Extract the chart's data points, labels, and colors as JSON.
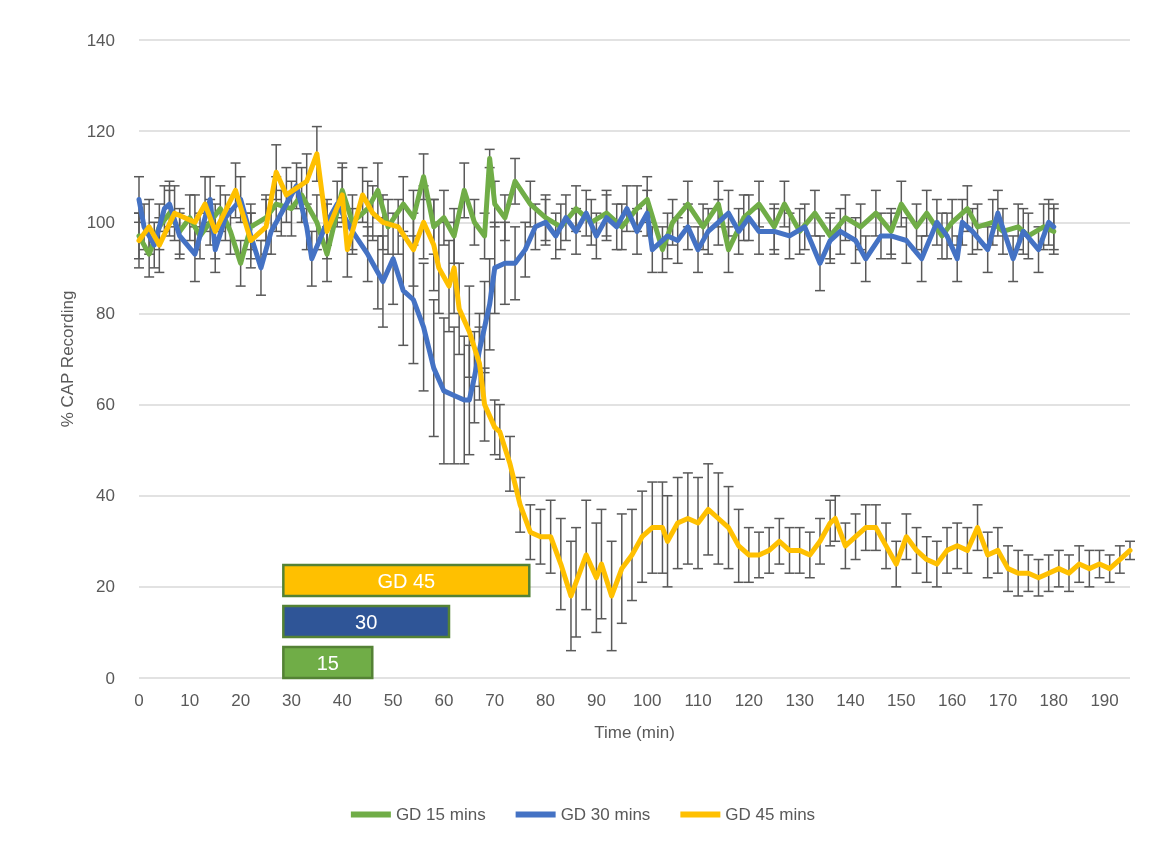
{
  "chart_data": {
    "type": "line",
    "xlabel": "Time (min)",
    "ylabel": "% CAP Recording",
    "xlim": [
      0,
      195
    ],
    "xticks": [
      0,
      10,
      20,
      30,
      40,
      50,
      60,
      70,
      80,
      90,
      100,
      110,
      120,
      130,
      140,
      150,
      160,
      170,
      180,
      190
    ],
    "ylim": [
      0,
      140
    ],
    "yticks": [
      0,
      20,
      40,
      60,
      80,
      100,
      120,
      140
    ],
    "grid": "y",
    "legend": "bottom",
    "marker": "none",
    "line_style": "solid",
    "bands": [
      {
        "axis": "x",
        "from": 28.4,
        "to": 76.8,
        "label": "GD 45",
        "color": "#ffc000"
      },
      {
        "axis": "x",
        "from": 28.4,
        "to": 61.0,
        "label": "30",
        "color": "#2f5597"
      },
      {
        "axis": "x",
        "from": 28.4,
        "to": 45.9,
        "label": "15",
        "color": "#70ad47"
      }
    ],
    "series": [
      {
        "name": "GD 15 mins",
        "color": "#70ad47",
        "x": [
          0,
          2,
          4,
          6,
          8,
          10,
          12,
          14,
          16,
          18,
          20,
          22,
          25,
          27,
          30,
          32,
          35,
          37,
          40,
          42,
          45,
          47,
          49,
          52,
          54,
          56,
          58,
          60,
          62,
          64,
          66,
          68,
          69,
          70,
          72,
          74,
          77,
          80,
          83,
          86,
          89,
          92,
          95,
          98,
          100,
          103,
          105,
          108,
          111,
          114,
          116,
          119,
          122,
          125,
          127,
          130,
          133,
          136,
          139,
          142,
          145,
          148,
          150,
          153,
          155,
          158,
          160,
          163,
          165,
          168,
          170,
          173,
          175,
          178,
          180
        ],
        "values": [
          97,
          93,
          99,
          102,
          98,
          101,
          97,
          100,
          103,
          98,
          91,
          99,
          101,
          104,
          103,
          106,
          100,
          93,
          107,
          100,
          103,
          107,
          99,
          104,
          101,
          110,
          99,
          101,
          97,
          107,
          100,
          97,
          114,
          104,
          101,
          109,
          104,
          101,
          99,
          103,
          100,
          102,
          99,
          103,
          105,
          94,
          100,
          104,
          99,
          104,
          94,
          101,
          104,
          99,
          104,
          98,
          102,
          97,
          101,
          99,
          102,
          98,
          104,
          99,
          102,
          97,
          100,
          103,
          99,
          100,
          98,
          99,
          97,
          99,
          98
        ],
        "errors": [
          5,
          5,
          5,
          5,
          5,
          5,
          5,
          5,
          5,
          5,
          5,
          5,
          5,
          6,
          6,
          6,
          6,
          6,
          6,
          6,
          6,
          6,
          6,
          6,
          6,
          5,
          6,
          6,
          6,
          6,
          5,
          5,
          2,
          5,
          5,
          5,
          5,
          5,
          5,
          5,
          5,
          5,
          5,
          5,
          5,
          5,
          5,
          5,
          5,
          5,
          5,
          5,
          5,
          5,
          5,
          5,
          5,
          5,
          5,
          5,
          5,
          5,
          5,
          5,
          5,
          5,
          5,
          5,
          5,
          5,
          5,
          5,
          5,
          5,
          5
        ]
      },
      {
        "name": "GD 30 mins",
        "color": "#4472c4",
        "x": [
          0,
          1,
          3,
          5,
          6,
          8,
          11,
          14,
          15,
          17,
          20,
          22,
          24,
          26,
          28,
          31,
          33,
          34,
          37,
          39,
          42,
          45,
          47,
          48,
          50,
          52,
          54,
          56,
          58,
          60,
          62,
          64,
          65,
          66,
          67,
          68,
          69,
          70,
          72,
          74,
          76,
          78,
          80,
          82,
          84,
          86,
          88,
          90,
          92,
          94,
          96,
          98,
          100,
          101,
          104,
          106,
          108,
          110,
          112,
          114,
          116,
          118,
          120,
          122,
          125,
          128,
          131,
          134,
          136,
          138,
          141,
          143,
          146,
          148,
          151,
          154,
          157,
          159,
          161,
          162,
          164,
          167,
          169,
          172,
          174,
          177,
          179,
          180
        ],
        "values": [
          105,
          99,
          95,
          103,
          104,
          97,
          93,
          105,
          94,
          101,
          105,
          97,
          90,
          98,
          102,
          108,
          99,
          92,
          100,
          104,
          98,
          93,
          89,
          87,
          92,
          85,
          83,
          77,
          68,
          63,
          62,
          61,
          61,
          66,
          72,
          77,
          82,
          90,
          91,
          91,
          94,
          99,
          100,
          97,
          101,
          98,
          102,
          97,
          101,
          99,
          103,
          98,
          102,
          94,
          97,
          96,
          99,
          94,
          98,
          100,
          102,
          98,
          101,
          98,
          98,
          97,
          99,
          91,
          96,
          98,
          96,
          92,
          97,
          97,
          96,
          92,
          100,
          97,
          92,
          100,
          98,
          94,
          102,
          92,
          98,
          94,
          100,
          99
        ],
        "errors": [
          5,
          5,
          5,
          5,
          5,
          5,
          6,
          5,
          5,
          5,
          5,
          5,
          6,
          5,
          5,
          5,
          5,
          6,
          5,
          5,
          5,
          6,
          8,
          10,
          10,
          12,
          14,
          14,
          15,
          16,
          15,
          14,
          12,
          10,
          8,
          10,
          10,
          10,
          9,
          8,
          6,
          5,
          5,
          5,
          5,
          5,
          5,
          5,
          5,
          5,
          5,
          5,
          5,
          5,
          5,
          5,
          5,
          5,
          5,
          5,
          5,
          5,
          5,
          5,
          5,
          5,
          5,
          6,
          5,
          5,
          5,
          5,
          5,
          5,
          5,
          5,
          5,
          5,
          5,
          5,
          5,
          5,
          5,
          5,
          5,
          5,
          5,
          5
        ]
      },
      {
        "name": "GD 45 mins",
        "color": "#ffc000",
        "x": [
          0,
          2,
          4,
          7,
          11,
          13,
          15,
          19,
          22,
          25,
          27,
          29,
          33,
          35,
          37,
          40,
          41,
          44,
          46,
          48,
          51,
          54,
          56,
          58,
          59,
          61,
          62,
          63,
          65,
          67,
          68,
          70,
          71,
          73,
          75,
          77,
          79,
          81,
          83,
          85,
          86,
          88,
          90,
          91,
          93,
          95,
          97,
          99,
          101,
          103,
          104,
          106,
          108,
          110,
          112,
          114,
          116,
          118,
          120,
          122,
          124,
          126,
          128,
          130,
          132,
          134,
          136,
          137,
          139,
          141,
          143,
          145,
          147,
          149,
          151,
          153,
          155,
          157,
          159,
          161,
          163,
          165,
          167,
          169,
          171,
          173,
          175,
          177,
          179,
          181,
          183,
          185,
          187,
          189,
          191,
          193,
          195
        ],
        "values": [
          96,
          99,
          95,
          102,
          100,
          104,
          98,
          107,
          96,
          99,
          111,
          106,
          109,
          115,
          98,
          106,
          94,
          106,
          102,
          100,
          99,
          94,
          100,
          95,
          90,
          86,
          90,
          81,
          76,
          69,
          60,
          55,
          54,
          47,
          38,
          32,
          31,
          31,
          25,
          18,
          21,
          27,
          22,
          25,
          18,
          24,
          27,
          31,
          33,
          33,
          30,
          34,
          35,
          34,
          37,
          35,
          33,
          29,
          27,
          27,
          28,
          30,
          28,
          28,
          27,
          30,
          34,
          35,
          29,
          31,
          33,
          33,
          29,
          25,
          31,
          28,
          26,
          25,
          28,
          29,
          28,
          33,
          27,
          28,
          24,
          23,
          23,
          22,
          23,
          24,
          23,
          25,
          24,
          25,
          24,
          26,
          28
        ],
        "errors": [
          6,
          6,
          6,
          6,
          6,
          6,
          6,
          6,
          6,
          6,
          6,
          6,
          6,
          6,
          6,
          6,
          6,
          6,
          6,
          6,
          6,
          8,
          8,
          10,
          10,
          10,
          10,
          10,
          10,
          8,
          8,
          6,
          6,
          6,
          6,
          6,
          6,
          8,
          10,
          12,
          12,
          12,
          12,
          12,
          12,
          12,
          10,
          10,
          10,
          10,
          10,
          10,
          10,
          10,
          10,
          10,
          9,
          8,
          6,
          5,
          5,
          5,
          5,
          5,
          5,
          5,
          5,
          5,
          5,
          5,
          5,
          5,
          5,
          5,
          5,
          5,
          5,
          5,
          5,
          5,
          5,
          5,
          5,
          5,
          5,
          5,
          4,
          4,
          4,
          4,
          4,
          4,
          4,
          3,
          3,
          3,
          2
        ]
      }
    ]
  }
}
